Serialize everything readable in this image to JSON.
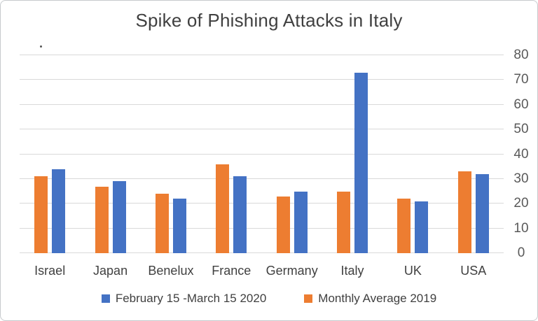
{
  "title": "Spike of Phishing Attacks in Italy",
  "colors": {
    "series_blue": "#4472C4",
    "series_orange": "#ED7D31",
    "gridline": "#D9D9D9",
    "axis_text": "#595959",
    "label_text": "#404040",
    "card_border": "#C6CACD",
    "background": "#FFFFFF"
  },
  "chart_data": {
    "type": "bar",
    "title": "Spike of Phishing Attacks in Italy",
    "categories": [
      "Israel",
      "Japan",
      "Benelux",
      "France",
      "Germany",
      "Italy",
      "UK",
      "USA"
    ],
    "series": [
      {
        "name": "February 15 -March 15 2020",
        "color": "#4472C4",
        "values": [
          34,
          29,
          22,
          31,
          25,
          73,
          21,
          32
        ]
      },
      {
        "name": "Monthly Average 2019",
        "color": "#ED7D31",
        "values": [
          31,
          27,
          24,
          36,
          23,
          25,
          22,
          33
        ]
      }
    ],
    "xlabel": "",
    "ylabel": "",
    "ylim": [
      0,
      80
    ],
    "yticks": [
      0,
      10,
      20,
      30,
      40,
      50,
      60,
      70,
      80
    ],
    "y_axis_side": "right",
    "grid": true,
    "legend_position": "bottom",
    "group_bar_order_left_to_right": [
      "Monthly Average 2019",
      "February 15 -March 15 2020"
    ]
  }
}
